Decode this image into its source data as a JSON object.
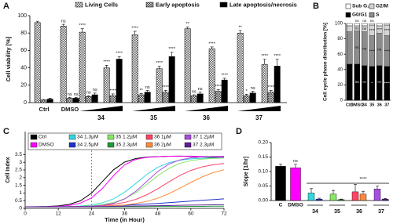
{
  "chart_data": [
    {
      "panel": "A",
      "type": "grouped_bar",
      "y_label": "Cell viability [%]",
      "categories": [
        "Ctrl",
        "DMSO",
        null,
        null,
        null,
        null,
        null,
        null,
        null,
        null
      ],
      "group_labels": [
        "34",
        "35",
        "36",
        "37"
      ],
      "series": [
        {
          "name": "Living Cells",
          "color": "#ffffff",
          "pattern": "checker",
          "values": [
            92,
            88,
            81,
            40,
            78,
            39,
            85,
            62,
            80,
            44
          ],
          "errors": [
            1.5,
            2,
            4,
            3,
            4,
            3,
            2,
            2,
            3,
            6
          ],
          "significance": [
            null,
            "ns",
            "****",
            "****",
            "****",
            "****",
            "**",
            "****",
            "**",
            "****"
          ]
        },
        {
          "name": "Early apoptosis",
          "color": "#ffffff",
          "pattern": "crosshatch",
          "values": [
            3,
            5,
            7,
            8,
            9,
            12,
            8,
            13,
            8,
            12
          ],
          "errors": [
            0.5,
            1,
            1,
            2,
            1.5,
            2,
            1,
            2,
            1.5,
            2
          ],
          "significance": [
            null,
            "ns",
            "ns",
            "****",
            "**",
            "****",
            "ns",
            "****",
            "*",
            "****"
          ]
        },
        {
          "name": "Late apoptosis/necrosis",
          "color": "#000000",
          "pattern": "solid",
          "values": [
            4,
            5,
            9,
            50,
            12,
            53,
            10,
            26,
            11,
            42
          ],
          "errors": [
            1,
            1,
            2,
            3,
            2,
            5,
            2,
            2,
            2,
            8
          ],
          "significance": [
            null,
            "ns",
            "ns",
            "****",
            "ns",
            "****",
            "ns",
            "****",
            "ns",
            "****"
          ]
        }
      ],
      "ylim": [
        0,
        100
      ],
      "yticks": [
        0,
        20,
        40,
        60,
        80,
        100
      ],
      "legend": "top"
    },
    {
      "panel": "B",
      "type": "stacked_bar",
      "y_label": "Cell cycle phase distribution [%]",
      "categories": [
        "Ctrl",
        "DMSO",
        "34",
        "35",
        "36",
        "37"
      ],
      "series": [
        {
          "name": "G0/G1",
          "color": "#000000",
          "values": [
            47,
            47,
            45,
            44,
            45,
            44
          ],
          "significance": [
            null,
            "ns",
            "***",
            "*",
            "***",
            "****"
          ]
        },
        {
          "name": "S",
          "color": "#8c8c8c",
          "values": [
            42,
            43,
            44,
            40,
            42,
            40
          ],
          "significance": [
            null,
            "ns",
            "ns",
            "****",
            "ns",
            "****"
          ]
        },
        {
          "name": "G2/M",
          "color": "#d4d4d4",
          "values": [
            8,
            7,
            8,
            14,
            10,
            14
          ],
          "significance": [
            null,
            "ns",
            "ns",
            "****",
            "****",
            "****"
          ]
        },
        {
          "name": "Sub G₁",
          "color": "#ffffff",
          "values": [
            3,
            3,
            3,
            2,
            3,
            2
          ],
          "significance": [
            null,
            "ns",
            "ns",
            "ns",
            null,
            null
          ]
        }
      ],
      "ylim": [
        0,
        100
      ],
      "yticks": [
        0,
        20,
        40,
        60,
        80,
        100
      ],
      "legend": "top"
    },
    {
      "panel": "C",
      "type": "line",
      "x_label": "Time (in Hour)",
      "y_label": "Cell Index",
      "x": [
        0,
        4,
        8,
        12,
        16,
        20,
        24,
        28,
        32,
        36,
        40,
        44,
        48,
        52,
        56,
        60,
        64,
        68,
        72
      ],
      "series": [
        {
          "name": "Ctrl",
          "color": "#000000",
          "values": [
            0.1,
            0.11,
            0.12,
            0.16,
            0.26,
            0.49,
            0.99,
            1.75,
            2.51,
            3.01,
            3.24,
            3.34,
            3.37,
            3.39,
            3.4,
            3.38,
            3.35,
            3.32,
            3.3
          ]
        },
        {
          "name": "DMSO",
          "color": "#ff00ff",
          "values": [
            0.1,
            0.1,
            0.11,
            0.13,
            0.19,
            0.34,
            0.68,
            1.3,
            2.13,
            2.83,
            3.18,
            3.32,
            3.36,
            3.39,
            3.4,
            3.4,
            3.38,
            3.36,
            3.34
          ]
        },
        {
          "name": "34 1.3µM",
          "color": "#33d6dd",
          "values": [
            0.1,
            0.1,
            0.1,
            0.11,
            0.12,
            0.15,
            0.22,
            0.36,
            0.62,
            1.05,
            1.61,
            2.2,
            2.67,
            2.97,
            3.13,
            3.22,
            3.26,
            3.28,
            3.29
          ]
        },
        {
          "name": "34 2.5µM",
          "color": "#2233cc",
          "values": [
            0.1,
            0.1,
            0.1,
            0.1,
            0.11,
            0.12,
            0.13,
            0.15,
            0.17,
            0.2,
            0.24,
            0.28,
            0.32,
            0.37,
            0.42,
            0.47,
            0.52,
            0.57,
            0.62
          ]
        },
        {
          "name": "35 1.2µM",
          "color": "#88e866",
          "values": [
            0.1,
            0.1,
            0.1,
            0.1,
            0.11,
            0.13,
            0.17,
            0.24,
            0.38,
            0.62,
            1.01,
            1.55,
            2.12,
            2.6,
            2.93,
            3.11,
            3.2,
            3.25,
            3.27
          ]
        },
        {
          "name": "35 2.3µM",
          "color": "#1f9a3a",
          "values": [
            0.1,
            0.1,
            0.1,
            0.1,
            0.1,
            0.1,
            0.1,
            0.1,
            0.1,
            0.11,
            0.11,
            0.11,
            0.12,
            0.12,
            0.12,
            0.13,
            0.13,
            0.14,
            0.14
          ]
        },
        {
          "name": "36 1µM",
          "color": "#ff4466",
          "values": [
            0.1,
            0.1,
            0.1,
            0.1,
            0.11,
            0.12,
            0.14,
            0.18,
            0.26,
            0.38,
            0.58,
            0.88,
            1.27,
            1.72,
            2.14,
            2.47,
            2.7,
            2.84,
            2.92
          ]
        },
        {
          "name": "36 2µM",
          "color": "#ff8a3c",
          "values": [
            0.1,
            0.1,
            0.1,
            0.1,
            0.1,
            0.11,
            0.12,
            0.14,
            0.17,
            0.22,
            0.31,
            0.45,
            0.66,
            0.95,
            1.31,
            1.69,
            2.04,
            2.32,
            2.51
          ]
        },
        {
          "name": "37 1.2µM",
          "color": "#a64fe0",
          "values": [
            0.1,
            0.1,
            0.1,
            0.1,
            0.11,
            0.12,
            0.14,
            0.2,
            0.33,
            0.61,
            1.1,
            1.75,
            2.4,
            2.88,
            3.15,
            3.29,
            3.35,
            3.38,
            3.39
          ]
        },
        {
          "name": "37 2.3µM",
          "color": "#5e2196",
          "values": [
            0.1,
            0.1,
            0.1,
            0.1,
            0.1,
            0.11,
            0.11,
            0.12,
            0.13,
            0.14,
            0.15,
            0.16,
            0.17,
            0.18,
            0.2,
            0.21,
            0.22,
            0.23,
            0.24
          ]
        }
      ],
      "xlim": [
        0,
        72
      ],
      "xticks": [
        0,
        12,
        24,
        36,
        48,
        60,
        72
      ],
      "ylim": [
        0,
        5
      ],
      "yticks": [
        0,
        0.5,
        1,
        1.5,
        2,
        2.5,
        3,
        3.5
      ],
      "vline_x": 24,
      "legend": "top-left"
    },
    {
      "panel": "D",
      "type": "bar",
      "y_label": "Slope [1/hr]",
      "categories": [
        "C",
        "DMSO",
        null,
        null,
        null,
        null,
        null,
        null,
        null,
        null
      ],
      "group_labels": [
        "34",
        "35",
        "36",
        "37"
      ],
      "values": [
        0.118,
        0.113,
        0.026,
        0.005,
        0.022,
        0.003,
        0.03,
        0.022,
        0.04,
        0.005
      ],
      "errors": [
        0.008,
        0.012,
        0.015,
        0.003,
        0.013,
        0.002,
        0.025,
        0.01,
        0.01,
        0.002
      ],
      "colors": [
        "#000000",
        "#ff00ff",
        "#33d6dd",
        "#2233cc",
        "#88e866",
        "#1f9a3a",
        "#ff4466",
        "#ff8a3c",
        "#a64fe0",
        "#5e2196"
      ],
      "significance": [
        null,
        "ns",
        null,
        null,
        null,
        null,
        null,
        null,
        null,
        null
      ],
      "bracket_label": "****",
      "ylim": [
        0,
        0.2
      ],
      "yticks": [
        {
          "value": 0,
          "label": "0.00"
        },
        {
          "value": 0.05,
          "label": "0.05"
        },
        {
          "value": 0.1,
          "label": "0.10"
        },
        {
          "value": 0.15,
          "label": "0.15"
        },
        {
          "value": 0.2,
          "label": "0.20"
        }
      ]
    }
  ]
}
